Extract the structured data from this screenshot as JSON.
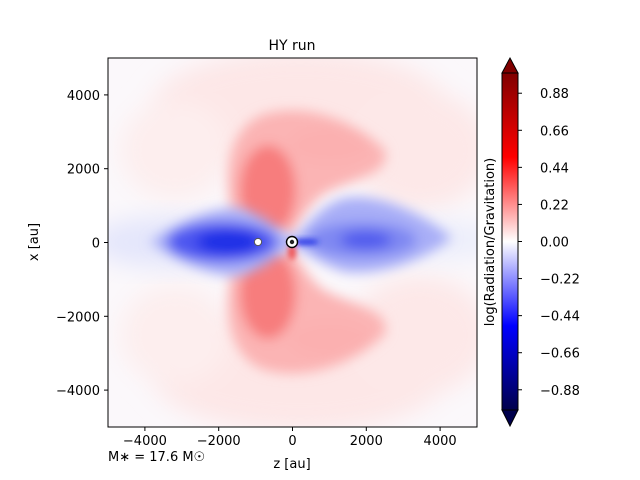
{
  "chart_data": {
    "type": "heatmap",
    "title": "HY run",
    "xlabel": "z [au]",
    "ylabel": "x [au]",
    "xlim": [
      -5000,
      5000
    ],
    "ylim": [
      -5000,
      5000
    ],
    "xticks": [
      -4000,
      -2000,
      0,
      2000,
      4000
    ],
    "xtick_labels": [
      "−4000",
      "−2000",
      "0",
      "2000",
      "4000"
    ],
    "yticks": [
      -4000,
      -2000,
      0,
      2000,
      4000
    ],
    "ytick_labels": [
      "−4000",
      "−2000",
      "0",
      "2000",
      "4000"
    ],
    "colorbar": {
      "label": "log(Radiation/Gravitation)",
      "colormap": "seismic",
      "range": [
        -1.0,
        1.0
      ],
      "extend": "both",
      "ticks": [
        0.88,
        0.66,
        0.44,
        0.22,
        0.0,
        -0.22,
        -0.44,
        -0.66,
        -0.88
      ],
      "tick_labels": [
        "0.88",
        "0.66",
        "0.44",
        "0.22",
        "0.00",
        "−0.22",
        "−0.44",
        "−0.66",
        "−0.88"
      ]
    },
    "regions": [
      {
        "name": "upper-outflow-lobe",
        "center": [
          -200,
          1500
        ],
        "value": 0.4
      },
      {
        "name": "lower-outflow-lobe",
        "center": [
          -200,
          -1500
        ],
        "value": 0.4
      },
      {
        "name": "left-disk",
        "center": [
          -1700,
          0
        ],
        "value": -0.9
      },
      {
        "name": "right-disk",
        "center": [
          2000,
          0
        ],
        "value": -0.6
      }
    ],
    "markers": [
      {
        "name": "central-star",
        "x": 0,
        "y": 0
      },
      {
        "name": "companion",
        "x": -900,
        "y": 0
      }
    ],
    "annotation": "M∗ = 17.6 M☉"
  }
}
